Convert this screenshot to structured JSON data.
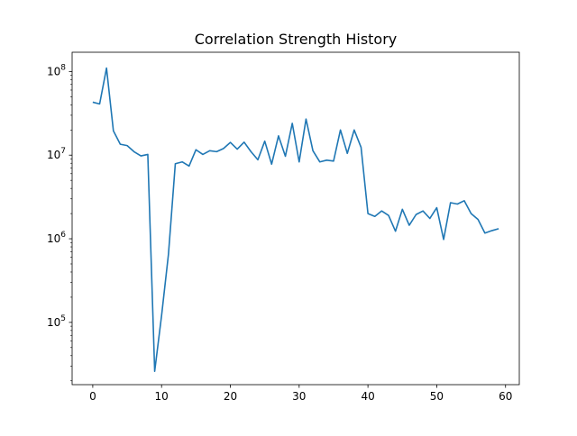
{
  "chart_data": {
    "type": "line",
    "title": "Correlation Strength History",
    "xlabel": "",
    "ylabel": "",
    "yscale": "log",
    "grid": false,
    "xlim": [
      -3,
      62
    ],
    "ylim": [
      18000,
      170000000
    ],
    "x_ticks": [
      0,
      10,
      20,
      30,
      40,
      50,
      60
    ],
    "x_tick_labels": [
      "0",
      "10",
      "20",
      "30",
      "40",
      "50",
      "60"
    ],
    "y_ticks": [
      {
        "value": 100000,
        "base": "10",
        "exp": "5"
      },
      {
        "value": 1000000,
        "base": "10",
        "exp": "6"
      },
      {
        "value": 10000000,
        "base": "10",
        "exp": "7"
      },
      {
        "value": 100000000,
        "base": "10",
        "exp": "8"
      }
    ],
    "series": [
      {
        "color": "#1f77b4",
        "x": [
          0,
          1,
          2,
          3,
          4,
          5,
          6,
          7,
          8,
          9,
          10,
          11,
          12,
          13,
          14,
          15,
          16,
          17,
          18,
          19,
          20,
          21,
          22,
          23,
          24,
          25,
          26,
          27,
          28,
          29,
          30,
          31,
          32,
          33,
          34,
          35,
          36,
          37,
          38,
          39,
          40,
          41,
          42,
          43,
          44,
          45,
          46,
          47,
          48,
          49,
          50,
          51,
          52,
          53,
          54,
          55,
          56,
          57,
          58,
          59
        ],
        "values": [
          43000000,
          41000000,
          110000000,
          19500000,
          13500000,
          13000000,
          11000000,
          9800000,
          10200000,
          26000,
          120000,
          650000,
          7900000,
          8300000,
          7400000,
          11600000,
          10200000,
          11300000,
          11000000,
          12000000,
          14200000,
          11800000,
          14300000,
          11000000,
          8800000,
          14700000,
          7800000,
          17000000,
          9700000,
          24000000,
          8300000,
          27000000,
          11300000,
          8300000,
          8700000,
          8500000,
          20000000,
          10500000,
          20000000,
          12400000,
          2000000,
          1850000,
          2150000,
          1900000,
          1230000,
          2250000,
          1450000,
          1950000,
          2150000,
          1750000,
          2350000,
          980000,
          2700000,
          2600000,
          2850000,
          2000000,
          1700000,
          1170000,
          1250000,
          1320000
        ]
      }
    ]
  }
}
